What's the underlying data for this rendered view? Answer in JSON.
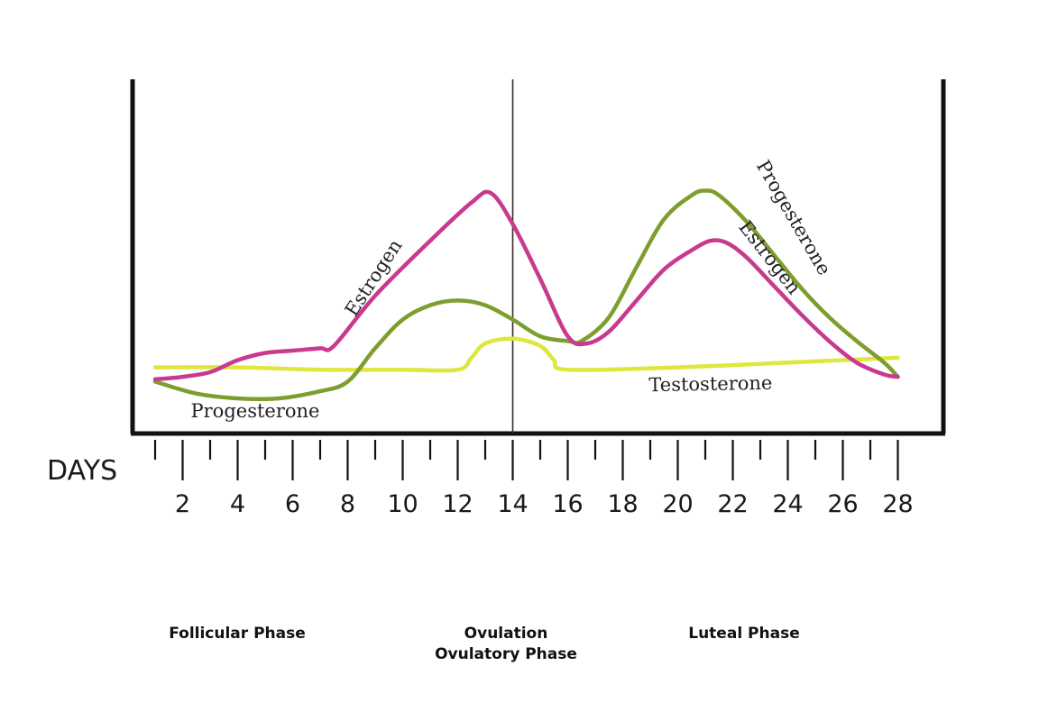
{
  "chart_data": {
    "type": "line",
    "xlabel": "DAYS",
    "ylabel": "",
    "xlim": [
      0.8,
      29.2
    ],
    "ylim": [
      0,
      10
    ],
    "grid": false,
    "x_ticks_labeled": [
      2,
      4,
      6,
      8,
      10,
      12,
      14,
      16,
      18,
      20,
      22,
      24,
      26,
      28
    ],
    "x_ticks_minor": [
      1,
      3,
      5,
      7,
      9,
      11,
      13,
      15,
      17,
      19,
      21,
      23,
      25,
      27
    ],
    "ovulation_marker_day": 14,
    "colors": {
      "estrogen": "#c8398f",
      "progesterone": "#7d9e2e",
      "testosterone": "#dfe63d",
      "axis": "#111111"
    },
    "series": [
      {
        "name": "Estrogen",
        "key": "estrogen",
        "x": [
          1.0,
          2.0,
          3.0,
          4.0,
          5.0,
          6.0,
          7.0,
          7.5,
          9.0,
          11.0,
          12.5,
          13.2,
          14.0,
          15.0,
          16.0,
          16.7,
          17.5,
          18.5,
          19.5,
          20.5,
          21.2,
          21.8,
          22.5,
          23.5,
          24.5,
          25.5,
          26.5,
          27.5,
          28.0
        ],
        "y": [
          0.8,
          0.9,
          1.1,
          1.6,
          1.9,
          2.0,
          2.1,
          2.2,
          4.3,
          6.6,
          8.2,
          8.6,
          7.3,
          5.0,
          2.6,
          2.3,
          2.8,
          4.1,
          5.4,
          6.2,
          6.6,
          6.5,
          5.9,
          4.7,
          3.5,
          2.4,
          1.5,
          1.0,
          0.9
        ],
        "labels": [
          "Estrogen",
          "Estrogen"
        ]
      },
      {
        "name": "Progesterone",
        "key": "progesterone",
        "x": [
          1.0,
          2.5,
          4.0,
          5.5,
          7.0,
          8.0,
          9.0,
          10.0,
          11.0,
          12.0,
          13.0,
          14.0,
          15.0,
          16.0,
          16.5,
          17.5,
          18.5,
          19.5,
          20.5,
          21.0,
          21.5,
          22.5,
          23.5,
          24.5,
          25.5,
          26.5,
          27.5,
          28.0
        ],
        "y": [
          0.7,
          0.2,
          0.0,
          0.0,
          0.3,
          0.7,
          2.1,
          3.3,
          3.9,
          4.1,
          3.9,
          3.3,
          2.6,
          2.4,
          2.4,
          3.4,
          5.5,
          7.5,
          8.5,
          8.7,
          8.5,
          7.4,
          6.0,
          4.6,
          3.4,
          2.4,
          1.5,
          0.9
        ],
        "labels": [
          "Progesterone",
          "Progesterone"
        ]
      },
      {
        "name": "Testosterone",
        "key": "testosterone",
        "x": [
          1.0,
          4.0,
          7.0,
          10.0,
          12.0,
          12.5,
          13.0,
          14.0,
          15.0,
          15.5,
          16.0,
          20.0,
          24.0,
          28.0
        ],
        "y": [
          1.3,
          1.3,
          1.2,
          1.2,
          1.2,
          1.7,
          2.3,
          2.5,
          2.2,
          1.6,
          1.2,
          1.3,
          1.5,
          1.7
        ],
        "labels": [
          "Testosterone"
        ]
      }
    ],
    "phases": [
      {
        "lines": [
          "Follicular Phase"
        ]
      },
      {
        "lines": [
          "Ovulation",
          "Ovulatory Phase"
        ]
      },
      {
        "lines": [
          "Luteal Phase"
        ]
      }
    ]
  }
}
